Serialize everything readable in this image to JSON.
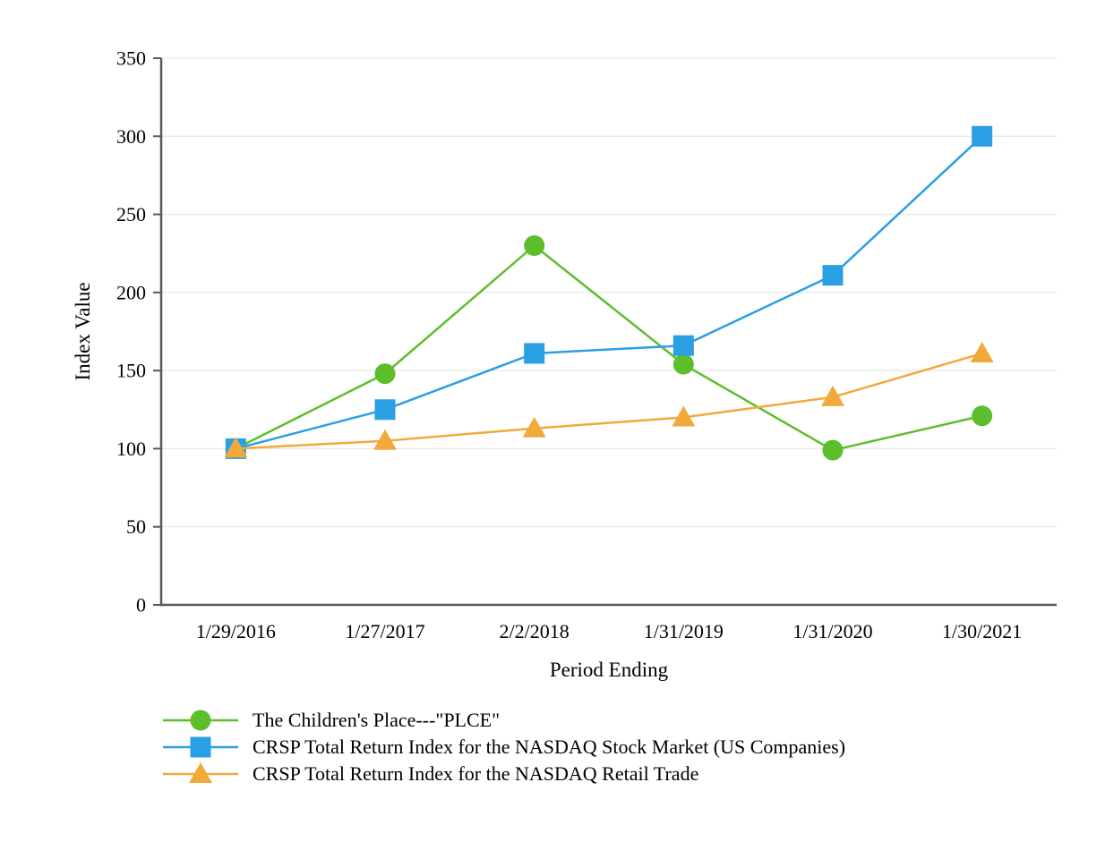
{
  "chart_data": {
    "type": "line",
    "title": "",
    "xlabel": "Period Ending",
    "ylabel": "Index Value",
    "categories": [
      "1/29/2016",
      "1/27/2017",
      "2/2/2018",
      "1/31/2019",
      "1/31/2020",
      "1/30/2021"
    ],
    "ylim": [
      0,
      350
    ],
    "ytick_step": 50,
    "yticks": [
      0,
      50,
      100,
      150,
      200,
      250,
      300,
      350
    ],
    "grid": true,
    "legend_position": "bottom-left",
    "colors": {
      "axis": "#595959",
      "gridline": "#e2e2e2",
      "text": "#000000"
    },
    "series": [
      {
        "name": "The Children's Place---\"PLCE\"",
        "marker": "circle",
        "color": "#5cbe2b",
        "values": [
          100,
          148,
          230,
          154,
          99,
          121
        ]
      },
      {
        "name": "CRSP Total Return Index for the NASDAQ Stock Market (US Companies)",
        "marker": "square",
        "color": "#2b9fe3",
        "values": [
          100,
          125,
          161,
          166,
          211,
          300
        ]
      },
      {
        "name": "CRSP Total Return Index for the NASDAQ Retail Trade",
        "marker": "triangle",
        "color": "#f2a93c",
        "values": [
          100,
          105,
          113,
          120,
          133,
          161
        ]
      }
    ]
  }
}
